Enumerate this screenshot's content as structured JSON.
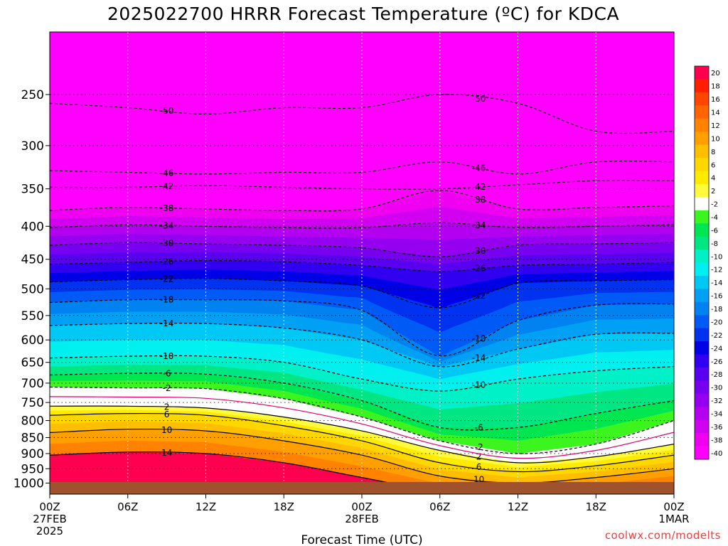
{
  "chart_data": {
    "type": "heatmap",
    "title": "2025022700 HRRR Forecast Temperature (ºC) for KDCA",
    "xlabel": "Forecast Time (UTC)",
    "ylabel": "",
    "credit": "coolwx.com/modelts",
    "y_axis_log_pressure": true,
    "ylim": [
      1040,
      200
    ],
    "yticks": [
      250,
      300,
      350,
      400,
      450,
      500,
      550,
      600,
      650,
      700,
      750,
      800,
      850,
      900,
      950,
      1000
    ],
    "xlim": [
      0,
      48
    ],
    "xticks": [
      {
        "hours": 0,
        "line1": "00Z",
        "line2": "27FEB",
        "line3": "2025"
      },
      {
        "hours": 6,
        "line1": "06Z",
        "line2": "",
        "line3": ""
      },
      {
        "hours": 12,
        "line1": "12Z",
        "line2": "",
        "line3": ""
      },
      {
        "hours": 18,
        "line1": "18Z",
        "line2": "",
        "line3": ""
      },
      {
        "hours": 24,
        "line1": "00Z",
        "line2": "28FEB",
        "line3": ""
      },
      {
        "hours": 30,
        "line1": "06Z",
        "line2": "",
        "line3": ""
      },
      {
        "hours": 36,
        "line1": "12Z",
        "line2": "",
        "line3": ""
      },
      {
        "hours": 42,
        "line1": "18Z",
        "line2": "",
        "line3": ""
      },
      {
        "hours": 48,
        "line1": "00Z",
        "line2": "1MAR",
        "line3": ""
      }
    ],
    "grid": true,
    "colorbar": {
      "position": "right",
      "labels": [
        "20",
        "18",
        "16",
        "14",
        "12",
        "10",
        "8",
        "6",
        "4",
        "2",
        "-2",
        "-4",
        "-6",
        "-8",
        "-10",
        "-12",
        "-14",
        "-16",
        "-18",
        "-20",
        "-22",
        "-24",
        "-26",
        "-28",
        "-30",
        "-32",
        "-34",
        "-36",
        "-38",
        "-40"
      ],
      "colors": [
        "#ff0050",
        "#ff1e00",
        "#ff4600",
        "#ff6400",
        "#ff8200",
        "#ffa000",
        "#ffbe00",
        "#ffd700",
        "#ffeb00",
        "#fffa3c",
        "#ffffff",
        "#3cf51e",
        "#00e650",
        "#00e682",
        "#00f0c8",
        "#00f0f0",
        "#00c8f5",
        "#00a0f5",
        "#0082f0",
        "#005af5",
        "#0032f0",
        "#0000e6",
        "#3200f0",
        "#5a00f0",
        "#7800f0",
        "#9600f0",
        "#b400f0",
        "#d200f0",
        "#f000f0",
        "#ff00ff"
      ]
    },
    "contours_celsius": [
      {
        "label": "-50",
        "level": -50,
        "pressure_by_hour": [
          [
            0,
            258
          ],
          [
            6,
            262
          ],
          [
            12,
            268
          ],
          [
            18,
            262
          ],
          [
            24,
            262
          ],
          [
            30,
            250
          ],
          [
            36,
            258
          ],
          [
            42,
            285
          ],
          [
            48,
            285
          ]
        ]
      },
      {
        "label": "-46",
        "level": -46,
        "pressure_by_hour": [
          [
            0,
            328
          ],
          [
            6,
            330
          ],
          [
            12,
            332
          ],
          [
            18,
            330
          ],
          [
            24,
            330
          ],
          [
            30,
            318
          ],
          [
            36,
            332
          ],
          [
            42,
            318
          ],
          [
            48,
            318
          ]
        ]
      },
      {
        "label": "-42",
        "level": -42,
        "pressure_by_hour": [
          [
            0,
            348
          ],
          [
            6,
            348
          ],
          [
            12,
            346
          ],
          [
            18,
            348
          ],
          [
            24,
            350
          ],
          [
            30,
            350
          ],
          [
            36,
            345
          ],
          [
            42,
            340
          ],
          [
            48,
            340
          ]
        ]
      },
      {
        "label": "-38",
        "level": -38,
        "pressure_by_hour": [
          [
            0,
            378
          ],
          [
            6,
            374
          ],
          [
            12,
            376
          ],
          [
            18,
            378
          ],
          [
            24,
            376
          ],
          [
            30,
            352
          ],
          [
            36,
            376
          ],
          [
            42,
            374
          ],
          [
            48,
            372
          ]
        ]
      },
      {
        "label": "-34",
        "level": -34,
        "pressure_by_hour": [
          [
            0,
            402
          ],
          [
            6,
            398
          ],
          [
            12,
            400
          ],
          [
            18,
            402
          ],
          [
            24,
            402
          ],
          [
            30,
            395
          ],
          [
            36,
            402
          ],
          [
            42,
            400
          ],
          [
            48,
            398
          ]
        ]
      },
      {
        "label": "-30",
        "level": -30,
        "pressure_by_hour": [
          [
            0,
            428
          ],
          [
            6,
            424
          ],
          [
            12,
            426
          ],
          [
            18,
            428
          ],
          [
            24,
            432
          ],
          [
            30,
            446
          ],
          [
            36,
            428
          ],
          [
            42,
            426
          ],
          [
            48,
            424
          ]
        ]
      },
      {
        "label": "-26",
        "level": -26,
        "pressure_by_hour": [
          [
            0,
            458
          ],
          [
            6,
            455
          ],
          [
            12,
            452
          ],
          [
            18,
            454
          ],
          [
            24,
            460
          ],
          [
            30,
            470
          ],
          [
            36,
            460
          ],
          [
            42,
            458
          ],
          [
            48,
            455
          ]
        ]
      },
      {
        "label": "-22",
        "level": -22,
        "pressure_by_hour": [
          [
            0,
            488
          ],
          [
            6,
            484
          ],
          [
            12,
            482
          ],
          [
            18,
            486
          ],
          [
            24,
            495
          ],
          [
            30,
            535
          ],
          [
            36,
            490
          ],
          [
            42,
            486
          ],
          [
            48,
            484
          ]
        ]
      },
      {
        "label": "-18",
        "level": -18,
        "pressure_by_hour": [
          [
            0,
            525
          ],
          [
            6,
            520
          ],
          [
            12,
            520
          ],
          [
            18,
            522
          ],
          [
            24,
            540
          ],
          [
            30,
            635
          ],
          [
            36,
            560
          ],
          [
            42,
            530
          ],
          [
            48,
            528
          ]
        ]
      },
      {
        "label": "-14",
        "level": -14,
        "pressure_by_hour": [
          [
            0,
            570
          ],
          [
            6,
            566
          ],
          [
            12,
            566
          ],
          [
            18,
            575
          ],
          [
            24,
            600
          ],
          [
            30,
            660
          ],
          [
            36,
            620
          ],
          [
            42,
            588
          ],
          [
            48,
            586
          ]
        ]
      },
      {
        "label": "-10",
        "level": -10,
        "pressure_by_hour": [
          [
            0,
            640
          ],
          [
            6,
            636
          ],
          [
            12,
            636
          ],
          [
            18,
            650
          ],
          [
            24,
            690
          ],
          [
            30,
            720
          ],
          [
            36,
            690
          ],
          [
            42,
            670
          ],
          [
            48,
            660
          ]
        ]
      },
      {
        "label": "-6",
        "level": -6,
        "pressure_by_hour": [
          [
            0,
            680
          ],
          [
            6,
            676
          ],
          [
            12,
            678
          ],
          [
            18,
            700
          ],
          [
            24,
            745
          ],
          [
            30,
            820
          ],
          [
            36,
            820
          ],
          [
            42,
            780
          ],
          [
            48,
            745
          ]
        ]
      },
      {
        "label": "-2",
        "level": -2,
        "pressure_by_hour": [
          [
            0,
            710
          ],
          [
            6,
            712
          ],
          [
            12,
            714
          ],
          [
            18,
            740
          ],
          [
            24,
            790
          ],
          [
            30,
            860
          ],
          [
            36,
            900
          ],
          [
            42,
            870
          ],
          [
            48,
            800
          ]
        ]
      },
      {
        "label": "2",
        "level": 2,
        "pressure_by_hour": [
          [
            0,
            760
          ],
          [
            6,
            760
          ],
          [
            12,
            765
          ],
          [
            18,
            790
          ],
          [
            24,
            830
          ],
          [
            30,
            890
          ],
          [
            36,
            930
          ],
          [
            42,
            910
          ],
          [
            48,
            870
          ]
        ]
      },
      {
        "label": "6",
        "level": 6,
        "pressure_by_hour": [
          [
            0,
            785
          ],
          [
            6,
            780
          ],
          [
            12,
            785
          ],
          [
            18,
            815
          ],
          [
            24,
            860
          ],
          [
            30,
            930
          ],
          [
            36,
            960
          ],
          [
            42,
            940
          ],
          [
            48,
            905
          ]
        ]
      },
      {
        "label": "10",
        "level": 10,
        "pressure_by_hour": [
          [
            0,
            835
          ],
          [
            6,
            825
          ],
          [
            12,
            830
          ],
          [
            18,
            860
          ],
          [
            24,
            905
          ],
          [
            30,
            975
          ],
          [
            36,
            1000
          ],
          [
            42,
            980
          ],
          [
            48,
            950
          ]
        ]
      },
      {
        "label": "14",
        "level": 14,
        "pressure_by_hour": [
          [
            0,
            905
          ],
          [
            6,
            895
          ],
          [
            12,
            900
          ],
          [
            18,
            930
          ],
          [
            24,
            980
          ],
          [
            30,
            1030
          ],
          [
            36,
            1040
          ],
          [
            42,
            1030
          ],
          [
            48,
            1000
          ]
        ]
      }
    ]
  }
}
